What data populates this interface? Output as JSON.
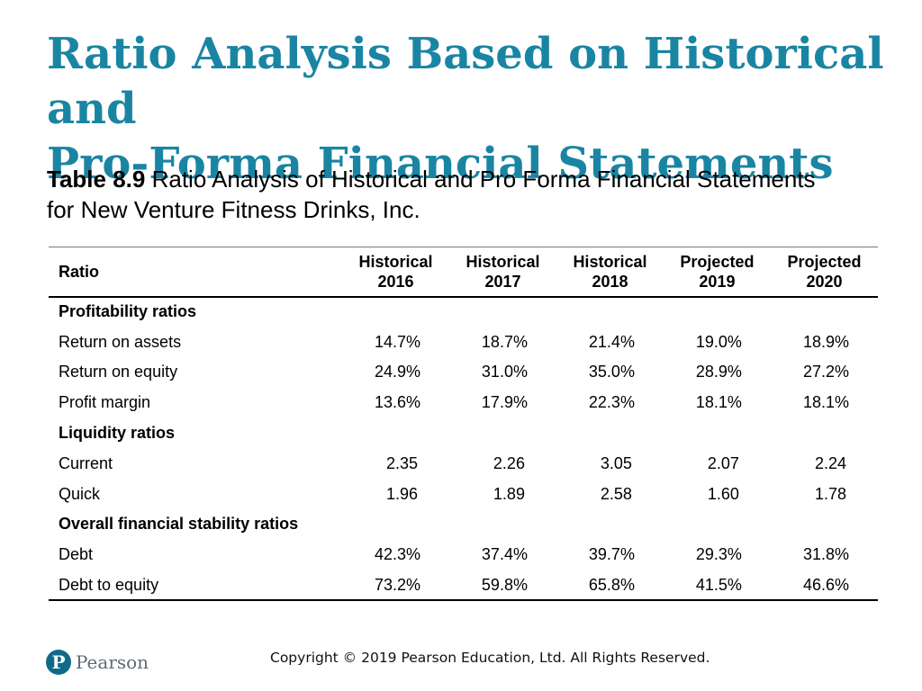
{
  "slide": {
    "title_line1": "Ratio Analysis Based on Historical and",
    "title_line2": "Pro-Forma Financial Statements"
  },
  "caption": {
    "label": "Table 8.9",
    "text_line1": " Ratio Analysis of Historical and Pro Forma Financial Statements",
    "text_line2": "for New Venture Fitness Drinks, Inc."
  },
  "table": {
    "header_ratio": "Ratio",
    "columns": [
      {
        "line1": "Historical",
        "line2": "2016"
      },
      {
        "line1": "Historical",
        "line2": "2017"
      },
      {
        "line1": "Historical",
        "line2": "2018"
      },
      {
        "line1": "Projected",
        "line2": "2019"
      },
      {
        "line1": "Projected",
        "line2": "2020"
      }
    ],
    "sections": [
      {
        "title": "Profitability ratios",
        "rows": [
          {
            "label": "Return on assets",
            "values": [
              "14.7%",
              "18.7%",
              "21.4%",
              "19.0%",
              "18.9%"
            ]
          },
          {
            "label": "Return on equity",
            "values": [
              "24.9%",
              "31.0%",
              "35.0%",
              "28.9%",
              "27.2%"
            ]
          },
          {
            "label": "Profit margin",
            "values": [
              "13.6%",
              "17.9%",
              "22.3%",
              "18.1%",
              "18.1%"
            ]
          }
        ]
      },
      {
        "title": "Liquidity ratios",
        "rows": [
          {
            "label": "Current",
            "values": [
              "2.35",
              "2.26",
              "3.05",
              "2.07",
              "2.24"
            ]
          },
          {
            "label": "Quick",
            "values": [
              "1.96",
              "1.89",
              "2.58",
              "1.60",
              "1.78"
            ]
          }
        ]
      },
      {
        "title": "Overall financial stability ratios",
        "rows": [
          {
            "label": "Debt",
            "values": [
              "42.3%",
              "37.4%",
              "39.7%",
              "29.3%",
              "31.8%"
            ]
          },
          {
            "label": "Debt to equity",
            "values": [
              "73.2%",
              "59.8%",
              "65.8%",
              "41.5%",
              "46.6%"
            ]
          }
        ]
      }
    ]
  },
  "footer": {
    "logo_mark": "P",
    "logo_word": "Pearson",
    "copyright": "Copyright © 2019 Pearson Education, Ltd. All Rights Reserved."
  },
  "colors": {
    "title": "#1a85a3",
    "logo": "#0f6a8a"
  },
  "icons": {
    "logo": "pearson-logo-icon"
  }
}
